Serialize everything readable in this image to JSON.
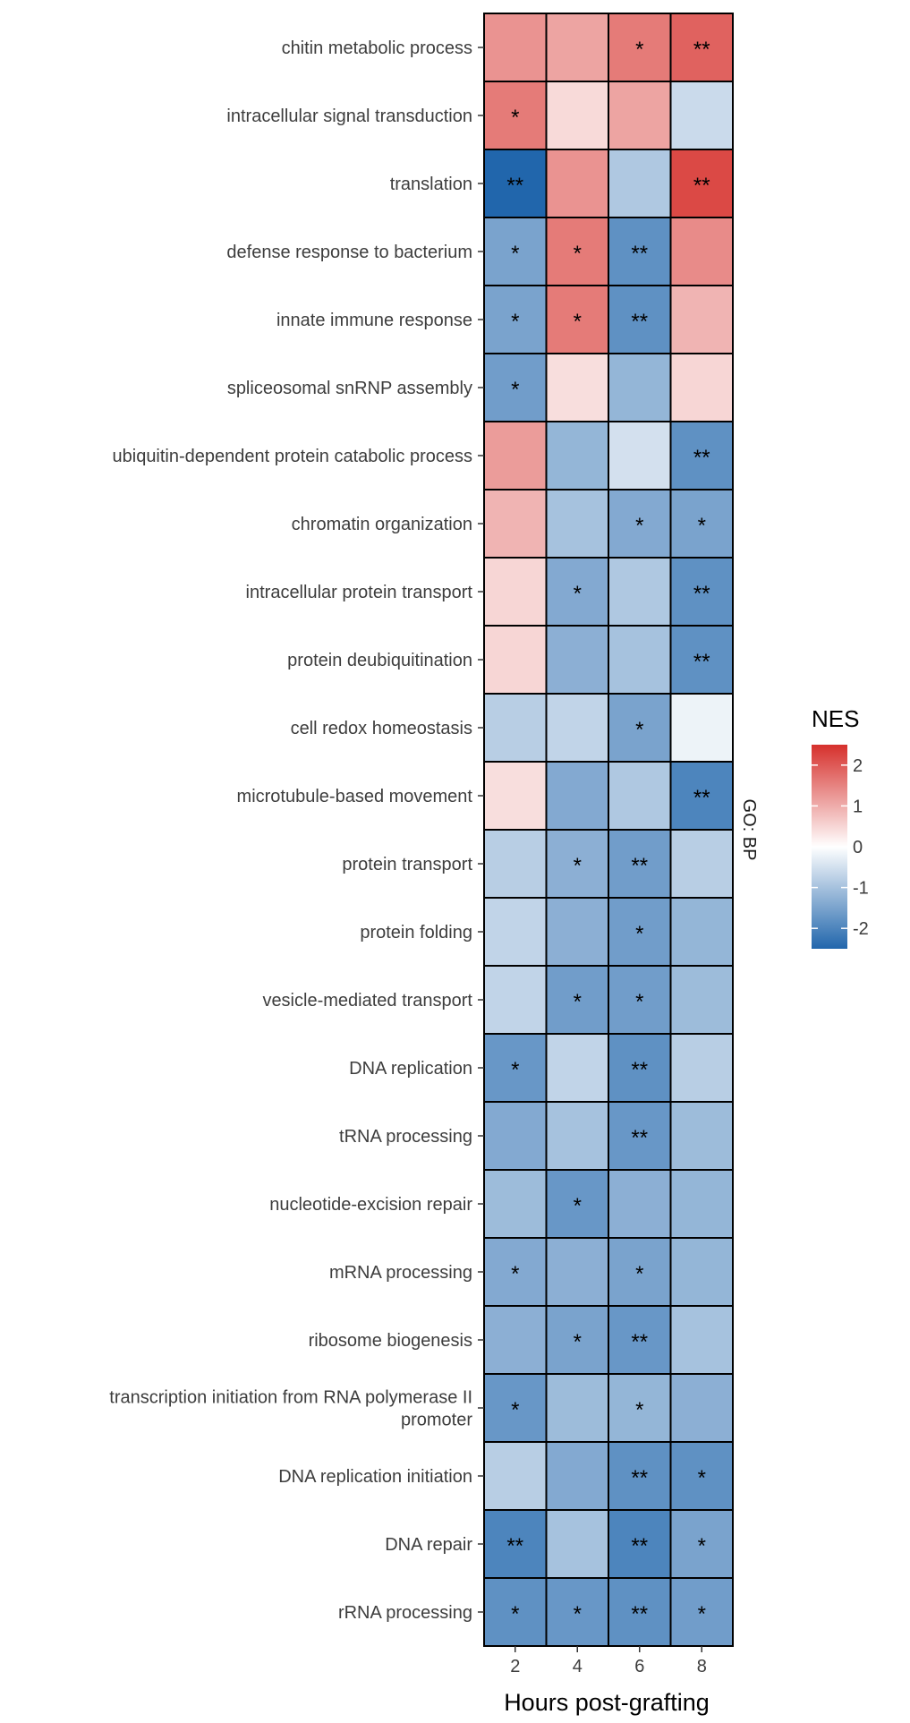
{
  "chart_data": {
    "type": "heatmap",
    "xlabel": "Hours post-grafting",
    "x": [
      "2",
      "4",
      "6",
      "8"
    ],
    "facet_label": "GO: BP",
    "rows": [
      {
        "label": [
          "chitin metabolic process"
        ],
        "values": [
          1.3,
          1.1,
          1.6,
          1.9
        ],
        "sig": [
          "",
          "",
          "*",
          "**"
        ]
      },
      {
        "label": [
          "intracellular signal transduction"
        ],
        "values": [
          1.6,
          0.45,
          1.1,
          -0.6
        ],
        "sig": [
          "*",
          "",
          "",
          ""
        ]
      },
      {
        "label": [
          "translation"
        ],
        "values": [
          -2.5,
          1.3,
          -0.9,
          2.2
        ],
        "sig": [
          "**",
          "",
          "",
          "**"
        ]
      },
      {
        "label": [
          "defense response to bacterium"
        ],
        "values": [
          -1.5,
          1.6,
          -1.8,
          1.4
        ],
        "sig": [
          "*",
          "*",
          "**",
          ""
        ]
      },
      {
        "label": [
          "innate immune response"
        ],
        "values": [
          -1.5,
          1.6,
          -1.8,
          0.9
        ],
        "sig": [
          "*",
          "*",
          "**",
          ""
        ]
      },
      {
        "label": [
          "spliceosomal snRNP assembly"
        ],
        "values": [
          -1.6,
          0.4,
          -1.2,
          0.5
        ],
        "sig": [
          "*",
          "",
          "",
          ""
        ]
      },
      {
        "label": [
          "ubiquitin-dependent protein catabolic process"
        ],
        "values": [
          1.2,
          -1.2,
          -0.5,
          -1.8
        ],
        "sig": [
          "",
          "",
          "",
          "**"
        ]
      },
      {
        "label": [
          "chromatin organization"
        ],
        "values": [
          0.9,
          -1.0,
          -1.4,
          -1.5
        ],
        "sig": [
          "",
          "",
          "*",
          "*"
        ]
      },
      {
        "label": [
          "intracellular protein transport"
        ],
        "values": [
          0.5,
          -1.4,
          -0.9,
          -1.8
        ],
        "sig": [
          "",
          "*",
          "",
          "**"
        ]
      },
      {
        "label": [
          "protein deubiquitination"
        ],
        "values": [
          0.5,
          -1.3,
          -1.0,
          -1.8
        ],
        "sig": [
          "",
          "",
          "",
          "**"
        ]
      },
      {
        "label": [
          "cell redox homeostasis"
        ],
        "values": [
          -0.8,
          -0.7,
          -1.5,
          -0.2
        ],
        "sig": [
          "",
          "",
          "*",
          ""
        ]
      },
      {
        "label": [
          "microtubule-based movement"
        ],
        "values": [
          0.4,
          -1.4,
          -0.9,
          -2.0
        ],
        "sig": [
          "",
          "",
          "",
          "**"
        ]
      },
      {
        "label": [
          "protein transport"
        ],
        "values": [
          -0.8,
          -1.3,
          -1.6,
          -0.8
        ],
        "sig": [
          "",
          "*",
          "**",
          ""
        ]
      },
      {
        "label": [
          "protein folding"
        ],
        "values": [
          -0.7,
          -1.3,
          -1.6,
          -1.2
        ],
        "sig": [
          "",
          "",
          "*",
          ""
        ]
      },
      {
        "label": [
          "vesicle-mediated transport"
        ],
        "values": [
          -0.7,
          -1.6,
          -1.6,
          -1.1
        ],
        "sig": [
          "",
          "*",
          "*",
          ""
        ]
      },
      {
        "label": [
          "DNA replication"
        ],
        "values": [
          -1.7,
          -0.7,
          -1.8,
          -0.8
        ],
        "sig": [
          "*",
          "",
          "**",
          ""
        ]
      },
      {
        "label": [
          "tRNA processing"
        ],
        "values": [
          -1.4,
          -1.0,
          -1.7,
          -1.1
        ],
        "sig": [
          "",
          "",
          "**",
          ""
        ]
      },
      {
        "label": [
          "nucleotide-excision repair"
        ],
        "values": [
          -1.1,
          -1.7,
          -1.3,
          -1.2
        ],
        "sig": [
          "",
          "*",
          "",
          ""
        ]
      },
      {
        "label": [
          "mRNA processing"
        ],
        "values": [
          -1.4,
          -1.3,
          -1.5,
          -1.2
        ],
        "sig": [
          "*",
          "",
          "*",
          ""
        ]
      },
      {
        "label": [
          "ribosome biogenesis"
        ],
        "values": [
          -1.3,
          -1.5,
          -1.7,
          -1.0
        ],
        "sig": [
          "",
          "*",
          "**",
          ""
        ]
      },
      {
        "label": [
          "transcription initiation from RNA polymerase II",
          "promoter"
        ],
        "values": [
          -1.7,
          -1.1,
          -1.2,
          -1.3
        ],
        "sig": [
          "*",
          "",
          "*",
          ""
        ]
      },
      {
        "label": [
          "DNA replication initiation"
        ],
        "values": [
          -0.8,
          -1.4,
          -1.8,
          -1.8
        ],
        "sig": [
          "",
          "",
          "**",
          "*"
        ]
      },
      {
        "label": [
          "DNA repair"
        ],
        "values": [
          -2.0,
          -1.0,
          -2.0,
          -1.5
        ],
        "sig": [
          "**",
          "",
          "**",
          "*"
        ]
      },
      {
        "label": [
          "rRNA processing"
        ],
        "values": [
          -1.8,
          -1.7,
          -1.8,
          -1.6
        ],
        "sig": [
          "*",
          "*",
          "**",
          "*"
        ]
      }
    ],
    "legend": {
      "title": "NES",
      "ticks": [
        2,
        1,
        0,
        -1,
        -2
      ],
      "tick_labels": [
        "2",
        "1",
        "0",
        "-1",
        "-2"
      ],
      "range": [
        -2.5,
        2.5
      ],
      "low_color": "#2166ac",
      "mid_color": "#ffffff",
      "high_color": "#d6302c",
      "placement": "right"
    },
    "grid": false
  }
}
